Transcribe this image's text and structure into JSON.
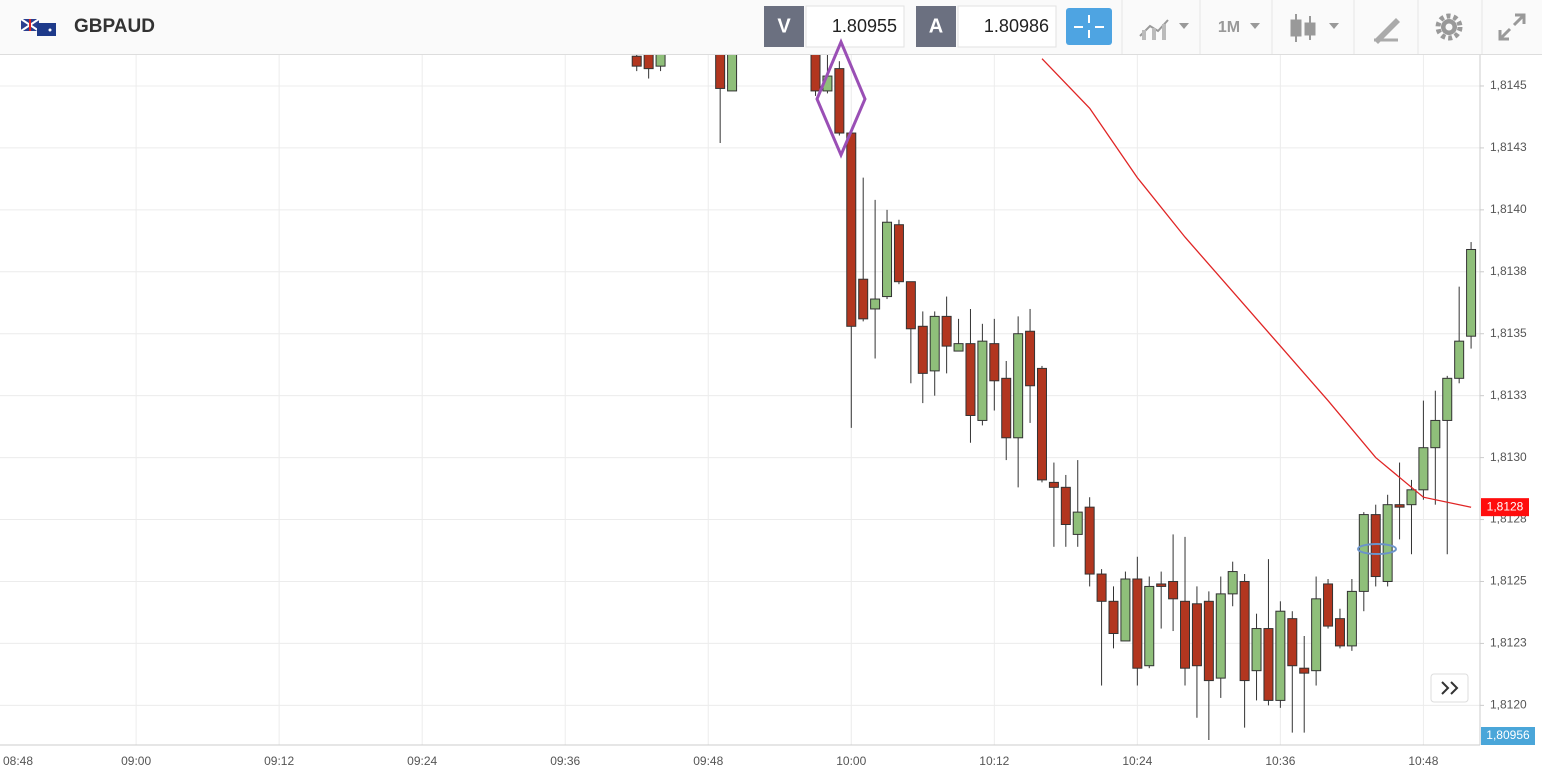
{
  "header": {
    "symbol": "GBPAUD",
    "bid_label": "V",
    "bid": "1.80955",
    "ask_label": "A",
    "ask": "1.80986",
    "timeframe": "1M"
  },
  "chart_data": {
    "type": "candlestick",
    "up_color": "#8fbf7a",
    "down_color": "#b2361f",
    "grid": true,
    "xlim": [
      "08:49",
      "10:53"
    ],
    "xticks": [
      "08:48",
      "09:00",
      "09:12",
      "09:24",
      "09:36",
      "09:48",
      "10:00",
      "10:12",
      "10:24",
      "10:36",
      "10:48"
    ],
    "ylim": [
      1.81184,
      1.814625
    ],
    "yticks": [
      {
        "value": 1.812,
        "label": "1,8120"
      },
      {
        "value": 1.81225,
        "label": "1,8123"
      },
      {
        "value": 1.8125,
        "label": "1,8125"
      },
      {
        "value": 1.81275,
        "label": "1,8128"
      },
      {
        "value": 1.813,
        "label": "1,8130"
      },
      {
        "value": 1.81325,
        "label": "1,8133"
      },
      {
        "value": 1.8135,
        "label": "1,8135"
      },
      {
        "value": 1.81375,
        "label": "1,8138"
      },
      {
        "value": 1.814,
        "label": "1,8140"
      },
      {
        "value": 1.81425,
        "label": "1,8143"
      },
      {
        "value": 1.8145,
        "label": "1,8145"
      }
    ],
    "x": [
      "09:42",
      "09:43",
      "09:44",
      "09:49",
      "09:50",
      "09:57",
      "09:58",
      "09:59",
      "10:00",
      "10:01",
      "10:02",
      "10:03",
      "10:04",
      "10:05",
      "10:06",
      "10:07",
      "10:08",
      "10:09",
      "10:10",
      "10:11",
      "10:12",
      "10:13",
      "10:14",
      "10:15",
      "10:16",
      "10:17",
      "10:18",
      "10:19",
      "10:20",
      "10:21",
      "10:22",
      "10:23",
      "10:24",
      "10:25",
      "10:26",
      "10:27",
      "10:28",
      "10:29",
      "10:30",
      "10:31",
      "10:32",
      "10:33",
      "10:34",
      "10:35",
      "10:36",
      "10:37",
      "10:38",
      "10:39",
      "10:40",
      "10:41",
      "10:42",
      "10:43",
      "10:44",
      "10:45",
      "10:46",
      "10:47",
      "10:48",
      "10:49",
      "10:50",
      "10:51",
      "10:52"
    ],
    "open": [
      1.81462,
      1.81466,
      1.81458,
      1.81475,
      1.81448,
      1.8147,
      1.81448,
      1.81457,
      1.81431,
      1.81372,
      1.8136,
      1.81365,
      1.81394,
      1.81371,
      1.81353,
      1.81335,
      1.81357,
      1.81343,
      1.81346,
      1.81315,
      1.81346,
      1.81332,
      1.81308,
      1.81351,
      1.81336,
      1.8129,
      1.81288,
      1.81269,
      1.8128,
      1.81253,
      1.81242,
      1.81226,
      1.81251,
      1.81216,
      1.81249,
      1.8125,
      1.81242,
      1.81241,
      1.81242,
      1.81211,
      1.81245,
      1.8125,
      1.81214,
      1.81231,
      1.81202,
      1.81235,
      1.81215,
      1.81214,
      1.81249,
      1.81235,
      1.81224,
      1.81246,
      1.81277,
      1.8125,
      1.81281,
      1.81281,
      1.81287,
      1.81304,
      1.81315,
      1.81332,
      1.81349
    ],
    "high": [
      1.81466,
      1.8147,
      1.81472,
      1.8148,
      1.8148,
      1.81475,
      1.81465,
      1.8146,
      1.81431,
      1.81413,
      1.81404,
      1.814,
      1.81396,
      1.81371,
      1.81359,
      1.81359,
      1.81365,
      1.81356,
      1.8136,
      1.81354,
      1.81356,
      1.81339,
      1.81357,
      1.8136,
      1.81337,
      1.81298,
      1.81293,
      1.81299,
      1.81284,
      1.81255,
      1.81248,
      1.81254,
      1.8126,
      1.81252,
      1.81254,
      1.81269,
      1.81268,
      1.81248,
      1.81246,
      1.81252,
      1.81258,
      1.81253,
      1.81237,
      1.81259,
      1.81242,
      1.81238,
      1.81228,
      1.81252,
      1.81251,
      1.81239,
      1.81251,
      1.81278,
      1.81281,
      1.81285,
      1.81298,
      1.81291,
      1.81323,
      1.81327,
      1.81333,
      1.81369,
      1.81387
    ],
    "low": [
      1.81456,
      1.81453,
      1.81456,
      1.81427,
      1.81448,
      1.81446,
      1.81447,
      1.8143,
      1.81312,
      1.81355,
      1.8134,
      1.81364,
      1.8137,
      1.8133,
      1.81322,
      1.81325,
      1.81334,
      1.81343,
      1.81306,
      1.81313,
      1.81319,
      1.81299,
      1.81288,
      1.81314,
      1.8129,
      1.81264,
      1.81264,
      1.81264,
      1.81248,
      1.81208,
      1.81223,
      1.81226,
      1.81208,
      1.81215,
      1.81231,
      1.8123,
      1.81208,
      1.81195,
      1.81186,
      1.81203,
      1.8124,
      1.81191,
      1.81202,
      1.812,
      1.81199,
      1.81189,
      1.81189,
      1.81208,
      1.81231,
      1.81223,
      1.81222,
      1.81238,
      1.81248,
      1.81248,
      1.81267,
      1.81261,
      1.81283,
      1.81281,
      1.81261,
      1.8133,
      1.81344
    ],
    "close": [
      1.81458,
      1.81457,
      1.81468,
      1.81449,
      1.81475,
      1.81448,
      1.81454,
      1.81431,
      1.81353,
      1.81356,
      1.81364,
      1.81395,
      1.81371,
      1.81352,
      1.81334,
      1.81357,
      1.81345,
      1.81346,
      1.81317,
      1.81347,
      1.81331,
      1.81308,
      1.8135,
      1.81329,
      1.81291,
      1.81288,
      1.81273,
      1.81278,
      1.81253,
      1.81242,
      1.81229,
      1.81251,
      1.81215,
      1.81248,
      1.81248,
      1.81243,
      1.81215,
      1.81216,
      1.8121,
      1.81245,
      1.81254,
      1.8121,
      1.81231,
      1.81202,
      1.81238,
      1.81216,
      1.81213,
      1.81243,
      1.81232,
      1.81224,
      1.81246,
      1.81277,
      1.81252,
      1.81281,
      1.8128,
      1.81287,
      1.81304,
      1.81315,
      1.81332,
      1.81347,
      1.81384
    ],
    "ma": {
      "color": "#e02525",
      "x": [
        "10:16",
        "10:20",
        "10:24",
        "10:28",
        "10:32",
        "10:36",
        "10:40",
        "10:44",
        "10:48",
        "10:52"
      ],
      "values": [
        1.81461,
        1.81441,
        1.81413,
        1.81389,
        1.81367,
        1.81345,
        1.81323,
        1.813,
        1.81284,
        1.8128
      ],
      "tag": "1,8128"
    },
    "price_tag": "1,80956"
  }
}
